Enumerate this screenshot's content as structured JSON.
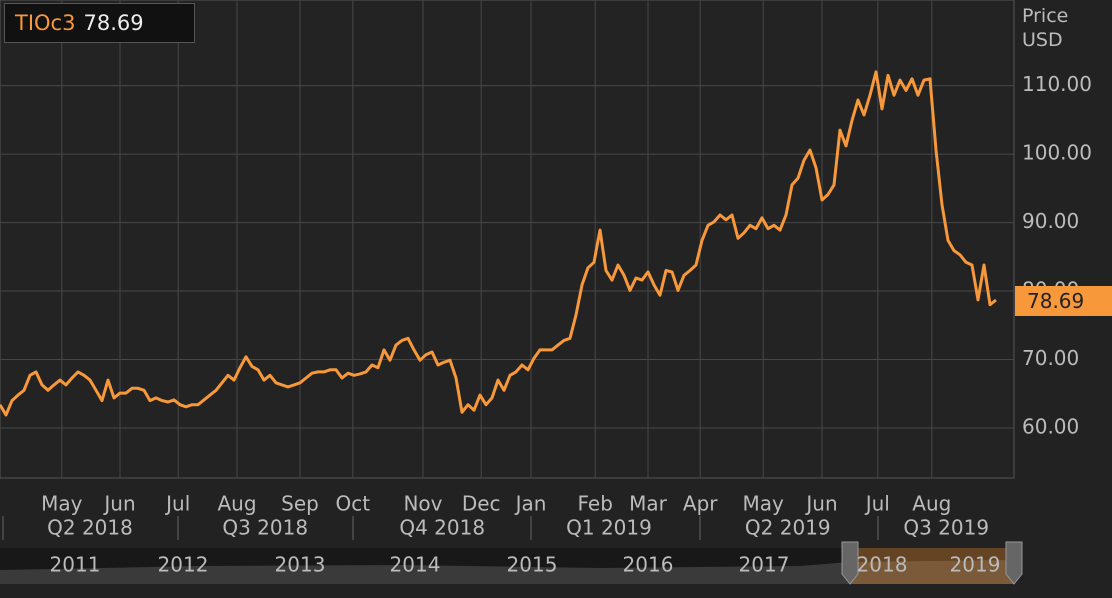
{
  "chart_data": {
    "type": "line",
    "y_label": "Price USD",
    "last_value": 78.69,
    "series": [
      {
        "name": "TIOc3",
        "color": "#f7983a",
        "values": [
          63.4,
          61.9,
          64,
          64.8,
          65.5,
          67.7,
          68.2,
          66.3,
          65.5,
          66.3,
          67,
          66.3,
          67.3,
          68.2,
          67.7,
          67,
          65.5,
          64,
          67,
          64.4,
          65.1,
          65.1,
          65.8,
          65.8,
          65.5,
          64,
          64.4,
          64,
          63.8,
          64.1,
          63.4,
          63.1,
          63.4,
          63.4,
          64.1,
          64.8,
          65.5,
          66.6,
          67.7,
          67,
          68.8,
          70.4,
          69,
          68.5,
          67,
          67.7,
          66.6,
          66.3,
          66,
          66.3,
          66.6,
          67.3,
          68,
          68.2,
          68.2,
          68.5,
          68.5,
          67.3,
          68,
          67.7,
          67.9,
          68.2,
          69.2,
          68.8,
          71.4,
          69.9,
          72.1,
          72.8,
          73.1,
          71.4,
          69.9,
          70.7,
          71.1,
          69.2,
          69.6,
          69.9,
          67.3,
          62.3,
          63.4,
          62.6,
          64.8,
          63.4,
          64.4,
          67,
          65.5,
          67.7,
          68.2,
          69.2,
          68.5,
          70.2,
          71.4,
          71.4,
          71.4,
          72.1,
          72.8,
          73.1,
          76.5,
          80.9,
          83.4,
          84.2,
          88.9,
          83,
          81.6,
          83.8,
          82.3,
          80.1,
          81.9,
          81.6,
          82.8,
          80.9,
          79.4,
          83,
          82.8,
          80.1,
          82.3,
          83,
          83.8,
          87.4,
          89.6,
          90.1,
          91.1,
          90.4,
          91.1,
          87.7,
          88.5,
          89.6,
          89.1,
          90.7,
          89.1,
          89.6,
          88.9,
          91.1,
          95.5,
          96.5,
          99.1,
          100.6,
          98,
          93.3,
          94.1,
          95.5,
          103.5,
          101.2,
          104.9,
          107.9,
          105.7,
          108.6,
          112,
          106.6,
          111.5,
          108.6,
          110.8,
          109.3,
          111,
          108.6,
          110.8,
          111,
          100.6,
          92.6,
          87.4,
          85.9,
          85.3,
          84.2,
          83.8,
          78.7,
          83.8,
          78,
          78.69
        ]
      }
    ],
    "xlim": [
      0,
      169
    ],
    "xticks": [
      {
        "value": 10.3,
        "label": "May"
      },
      {
        "value": 20,
        "label": "Jun"
      },
      {
        "value": 29.7,
        "label": "Jul"
      },
      {
        "value": 39.5,
        "label": "Aug"
      },
      {
        "value": 50,
        "label": "Sep"
      },
      {
        "value": 58.8,
        "label": "Oct"
      },
      {
        "value": 70.5,
        "label": "Nov"
      },
      {
        "value": 80.2,
        "label": "Dec"
      },
      {
        "value": 88.5,
        "label": "Jan"
      },
      {
        "value": 99.2,
        "label": "Feb"
      },
      {
        "value": 108,
        "label": "Mar"
      },
      {
        "value": 116.7,
        "label": "Apr"
      },
      {
        "value": 127.2,
        "label": "May"
      },
      {
        "value": 137,
        "label": "Jun"
      },
      {
        "value": 146.3,
        "label": "Jul"
      },
      {
        "value": 155.3,
        "label": "Aug"
      }
    ],
    "quarter_ticks": [
      {
        "value": 15,
        "label": "Q2 2018"
      },
      {
        "value": 44.2,
        "label": "Q3 2018"
      },
      {
        "value": 73.7,
        "label": "Q4 2018"
      },
      {
        "value": 101.5,
        "label": "Q1 2019"
      },
      {
        "value": 131.3,
        "label": "Q2 2019"
      },
      {
        "value": 157.7,
        "label": "Q3 2019"
      }
    ],
    "ylim": [
      52.7,
      122.5
    ],
    "yticks": [
      {
        "value": 60,
        "label": "60.00"
      },
      {
        "value": 70,
        "label": "70.00"
      },
      {
        "value": 80,
        "label": "80.00"
      },
      {
        "value": 90,
        "label": "90.00"
      },
      {
        "value": 100,
        "label": "100.00"
      },
      {
        "value": 110,
        "label": "110.00"
      }
    ],
    "grid": true,
    "navigator_years": [
      "2011",
      "2012",
      "2013",
      "2014",
      "2015",
      "2016",
      "2017",
      "2018",
      "2019"
    ]
  }
}
